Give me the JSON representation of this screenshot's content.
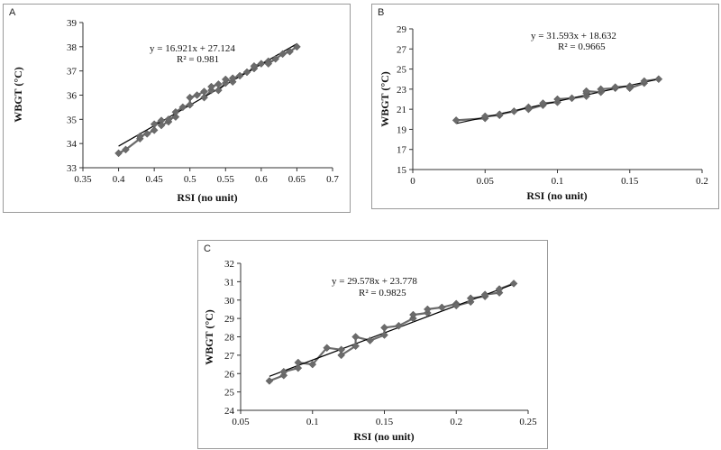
{
  "chart_data": [
    {
      "id": "A",
      "type": "scatter",
      "panel_label": "A",
      "equation": "y = 16.921x + 27.124",
      "r2": "R² = 0.981",
      "xlabel": "RSI (no unit)",
      "ylabel": "WBGT (°C)",
      "xlim": [
        0.35,
        0.7
      ],
      "ylim": [
        33,
        39
      ],
      "xticks": [
        0.35,
        0.4,
        0.45,
        0.5,
        0.55,
        0.6,
        0.65,
        0.7
      ],
      "yticks": [
        33,
        34,
        35,
        36,
        37,
        38,
        39
      ],
      "xtick_labels": [
        "0.35",
        "0.4",
        "0.45",
        "0.5",
        "0.55",
        "0.6",
        "0.65",
        "0.7"
      ],
      "ytick_labels": [
        "33",
        "34",
        "35",
        "36",
        "37",
        "38",
        "39"
      ],
      "trendline": {
        "slope": 16.921,
        "intercept": 27.124,
        "x_range": [
          0.4,
          0.65
        ]
      },
      "points": [
        [
          0.4,
          33.6
        ],
        [
          0.41,
          33.75
        ],
        [
          0.43,
          34.2
        ],
        [
          0.43,
          34.3
        ],
        [
          0.44,
          34.4
        ],
        [
          0.45,
          34.55
        ],
        [
          0.45,
          34.8
        ],
        [
          0.46,
          34.95
        ],
        [
          0.46,
          34.75
        ],
        [
          0.47,
          34.9
        ],
        [
          0.47,
          35.0
        ],
        [
          0.48,
          35.1
        ],
        [
          0.48,
          35.3
        ],
        [
          0.49,
          35.5
        ],
        [
          0.5,
          35.6
        ],
        [
          0.5,
          35.9
        ],
        [
          0.51,
          36.0
        ],
        [
          0.52,
          36.15
        ],
        [
          0.52,
          35.9
        ],
        [
          0.53,
          36.2
        ],
        [
          0.53,
          36.35
        ],
        [
          0.54,
          36.45
        ],
        [
          0.54,
          36.2
        ],
        [
          0.55,
          36.5
        ],
        [
          0.55,
          36.65
        ],
        [
          0.56,
          36.55
        ],
        [
          0.56,
          36.7
        ],
        [
          0.57,
          36.8
        ],
        [
          0.58,
          36.95
        ],
        [
          0.59,
          37.1
        ],
        [
          0.59,
          37.2
        ],
        [
          0.6,
          37.3
        ],
        [
          0.61,
          37.4
        ],
        [
          0.61,
          37.3
        ],
        [
          0.62,
          37.5
        ],
        [
          0.63,
          37.7
        ],
        [
          0.64,
          37.8
        ],
        [
          0.65,
          38.0
        ]
      ]
    },
    {
      "id": "B",
      "type": "scatter",
      "panel_label": "B",
      "equation": "y = 31.593x + 18.632",
      "r2": "R² = 0.9665",
      "xlabel": "RSI (no unit)",
      "ylabel": "WBGT (°C)",
      "xlim": [
        0,
        0.2
      ],
      "ylim": [
        15,
        29
      ],
      "xticks": [
        0,
        0.05,
        0.1,
        0.15,
        0.2
      ],
      "yticks": [
        15,
        17,
        19,
        21,
        23,
        25,
        27,
        29
      ],
      "xtick_labels": [
        "0",
        "0.05",
        "0.1",
        "0.15",
        "0.2"
      ],
      "ytick_labels": [
        "15",
        "17",
        "19",
        "21",
        "23",
        "25",
        "27",
        "29"
      ],
      "trendline": {
        "slope": 31.593,
        "intercept": 18.632,
        "x_range": [
          0.03,
          0.17
        ]
      },
      "points": [
        [
          0.03,
          19.9
        ],
        [
          0.05,
          20.1
        ],
        [
          0.05,
          20.3
        ],
        [
          0.06,
          20.4
        ],
        [
          0.06,
          20.5
        ],
        [
          0.07,
          20.8
        ],
        [
          0.08,
          21.2
        ],
        [
          0.08,
          21.0
        ],
        [
          0.09,
          21.4
        ],
        [
          0.09,
          21.6
        ],
        [
          0.1,
          21.7
        ],
        [
          0.1,
          22.0
        ],
        [
          0.11,
          22.1
        ],
        [
          0.12,
          22.3
        ],
        [
          0.12,
          22.6
        ],
        [
          0.12,
          22.8
        ],
        [
          0.13,
          22.7
        ],
        [
          0.13,
          23.0
        ],
        [
          0.14,
          23.1
        ],
        [
          0.14,
          23.2
        ],
        [
          0.15,
          23.3
        ],
        [
          0.15,
          23.1
        ],
        [
          0.16,
          23.6
        ],
        [
          0.16,
          23.8
        ],
        [
          0.17,
          24.0
        ]
      ]
    },
    {
      "id": "C",
      "type": "scatter",
      "panel_label": "C",
      "equation": "y = 29.578x + 23.778",
      "r2": "R² = 0.9825",
      "xlabel": "RSI (no unit)",
      "ylabel": "WBGT (°C)",
      "xlim": [
        0.05,
        0.25
      ],
      "ylim": [
        24,
        32
      ],
      "xticks": [
        0.05,
        0.1,
        0.15,
        0.2,
        0.25
      ],
      "yticks": [
        24,
        25,
        26,
        27,
        28,
        29,
        30,
        31,
        32
      ],
      "xtick_labels": [
        "0.05",
        "0.1",
        "0.15",
        "0.2",
        "0.25"
      ],
      "ytick_labels": [
        "24",
        "25",
        "26",
        "27",
        "28",
        "29",
        "30",
        "31",
        "32"
      ],
      "trendline": {
        "slope": 29.578,
        "intercept": 23.778,
        "x_range": [
          0.07,
          0.24
        ]
      },
      "points": [
        [
          0.07,
          25.6
        ],
        [
          0.08,
          25.9
        ],
        [
          0.08,
          26.1
        ],
        [
          0.09,
          26.3
        ],
        [
          0.09,
          26.6
        ],
        [
          0.1,
          26.5
        ],
        [
          0.11,
          27.4
        ],
        [
          0.12,
          27.3
        ],
        [
          0.12,
          27.0
        ],
        [
          0.13,
          27.5
        ],
        [
          0.13,
          28.0
        ],
        [
          0.14,
          27.8
        ],
        [
          0.15,
          28.1
        ],
        [
          0.15,
          28.5
        ],
        [
          0.16,
          28.6
        ],
        [
          0.17,
          29.0
        ],
        [
          0.17,
          29.2
        ],
        [
          0.18,
          29.3
        ],
        [
          0.18,
          29.5
        ],
        [
          0.19,
          29.6
        ],
        [
          0.2,
          29.8
        ],
        [
          0.2,
          29.7
        ],
        [
          0.21,
          29.9
        ],
        [
          0.21,
          30.1
        ],
        [
          0.22,
          30.2
        ],
        [
          0.22,
          30.3
        ],
        [
          0.23,
          30.4
        ],
        [
          0.23,
          30.6
        ],
        [
          0.24,
          30.9
        ]
      ]
    }
  ],
  "colors": {
    "marker": "#6b6b6b",
    "trendline": "#000000",
    "axis": "#333333",
    "frame": "#9a9a9a"
  }
}
